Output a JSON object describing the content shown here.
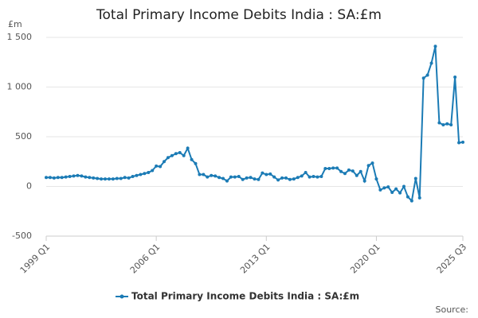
{
  "chart_data": {
    "type": "line",
    "title": "Total Primary Income Debits India : SA:£m",
    "y_unit_label": "£m",
    "source": "Source:",
    "categories": [
      "1999 Q1",
      null,
      null,
      null,
      null,
      null,
      null,
      null,
      null,
      null,
      null,
      null,
      null,
      null,
      null,
      null,
      null,
      null,
      null,
      null,
      null,
      null,
      null,
      null,
      null,
      null,
      null,
      null,
      "2006 Q1",
      null,
      null,
      null,
      null,
      null,
      null,
      null,
      null,
      null,
      null,
      null,
      null,
      null,
      null,
      null,
      null,
      null,
      null,
      null,
      null,
      null,
      null,
      null,
      null,
      null,
      null,
      null,
      "2013 Q1",
      null,
      null,
      null,
      null,
      null,
      null,
      null,
      null,
      null,
      null,
      null,
      null,
      null,
      null,
      null,
      null,
      null,
      null,
      null,
      null,
      null,
      null,
      null,
      null,
      null,
      null,
      null,
      "2020 Q1",
      null,
      null,
      null,
      null,
      null,
      null,
      null,
      null,
      null,
      null,
      null,
      null,
      null,
      null,
      null,
      null,
      null,
      null,
      null,
      null,
      null,
      "2025 Q3"
    ],
    "series": [
      {
        "name": "Total Primary Income Debits India : SA:£m",
        "color": "#1b7bb5",
        "values": [
          90,
          90,
          85,
          90,
          90,
          95,
          100,
          105,
          110,
          105,
          95,
          90,
          85,
          80,
          75,
          75,
          75,
          75,
          80,
          80,
          90,
          85,
          100,
          110,
          120,
          130,
          140,
          160,
          205,
          200,
          250,
          290,
          310,
          330,
          340,
          310,
          385,
          270,
          230,
          120,
          120,
          95,
          110,
          105,
          90,
          80,
          55,
          95,
          95,
          100,
          70,
          85,
          90,
          75,
          70,
          135,
          120,
          125,
          95,
          65,
          85,
          85,
          70,
          75,
          90,
          105,
          140,
          95,
          100,
          95,
          100,
          180,
          180,
          185,
          185,
          150,
          130,
          165,
          155,
          110,
          150,
          55,
          210,
          235,
          75,
          -35,
          -15,
          -5,
          -60,
          -25,
          -65,
          0,
          -105,
          -145,
          80,
          -115,
          1090,
          1120,
          1240,
          1410,
          640,
          620,
          630,
          620,
          1100,
          440,
          445
        ]
      }
    ],
    "ylim": [
      -500,
      1500
    ],
    "yticks": [
      {
        "value": 1500,
        "label": "1 500"
      },
      {
        "value": 1000,
        "label": "1 000"
      },
      500,
      0,
      -500
    ],
    "grid": true
  }
}
